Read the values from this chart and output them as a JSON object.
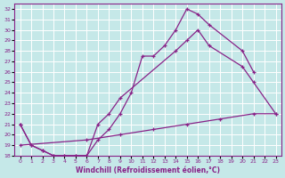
{
  "xlabel": "Windchill (Refroidissement éolien,°C)",
  "bg_color": "#c5e8e8",
  "grid_color": "#ffffff",
  "line_color": "#882288",
  "xlim": [
    -0.5,
    23.5
  ],
  "ylim": [
    18,
    32.5
  ],
  "xticks": [
    0,
    1,
    2,
    3,
    4,
    5,
    6,
    7,
    8,
    9,
    10,
    11,
    12,
    13,
    14,
    15,
    16,
    17,
    18,
    19,
    20,
    21,
    22,
    23
  ],
  "yticks": [
    18,
    19,
    20,
    21,
    22,
    23,
    24,
    25,
    26,
    27,
    28,
    29,
    30,
    31,
    32
  ],
  "line1_x": [
    0,
    1,
    2,
    3,
    4,
    5,
    6,
    7,
    8,
    9,
    10,
    11,
    12,
    13,
    14,
    15,
    16,
    17,
    20,
    21
  ],
  "line1_y": [
    21,
    19,
    18.5,
    18,
    18,
    18,
    18,
    19.5,
    20.5,
    22,
    24,
    27.5,
    27.5,
    28.5,
    30,
    32,
    31.5,
    30.5,
    28,
    26
  ],
  "line2_x": [
    0,
    1,
    2,
    3,
    4,
    5,
    6,
    7,
    8,
    9,
    14,
    15,
    16,
    17,
    20,
    21,
    23
  ],
  "line2_y": [
    21,
    19,
    18.5,
    18,
    18,
    18,
    18,
    21,
    22,
    23.5,
    28,
    29,
    30,
    28.5,
    26.5,
    25,
    22
  ],
  "line3_x": [
    0,
    6,
    9,
    12,
    15,
    18,
    21,
    23
  ],
  "line3_y": [
    19,
    19.5,
    20,
    20.5,
    21,
    21.5,
    22,
    22
  ]
}
